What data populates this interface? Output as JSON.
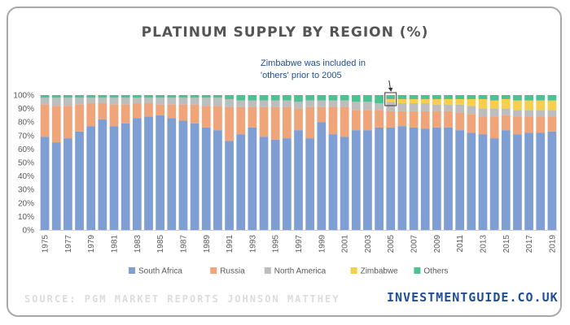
{
  "chart_data": {
    "type": "bar",
    "stacked": true,
    "title": "PLATINUM SUPPLY BY REGION (%)",
    "categories": [
      "1975",
      "1976",
      "1977",
      "1978",
      "1979",
      "1980",
      "1981",
      "1982",
      "1983",
      "1984",
      "1985",
      "1986",
      "1987",
      "1988",
      "1989",
      "1990",
      "1991",
      "1992",
      "1993",
      "1994",
      "1995",
      "1996",
      "1997",
      "1998",
      "1999",
      "2000",
      "2001",
      "2002",
      "2003",
      "2004",
      "2005",
      "2006",
      "2007",
      "2008",
      "2009",
      "2010",
      "2011",
      "2012",
      "2013",
      "2014",
      "2015",
      "2016",
      "2017",
      "2018",
      "2019"
    ],
    "x_tick_labels": [
      "1975",
      "1977",
      "1979",
      "1981",
      "1983",
      "1985",
      "1987",
      "1989",
      "1991",
      "1993",
      "1995",
      "1997",
      "1999",
      "2001",
      "2003",
      "2005",
      "2007",
      "2009",
      "2011",
      "2013",
      "2015",
      "2017",
      "2019"
    ],
    "y_tick_labels": [
      "0%",
      "10%",
      "20%",
      "30%",
      "40%",
      "50%",
      "60%",
      "70%",
      "80%",
      "90%",
      "100%"
    ],
    "ylim": [
      0,
      100
    ],
    "grid": false,
    "legend_position": "bottom",
    "series": [
      {
        "name": "South Africa",
        "color": "#7f9fd4",
        "values": [
          69,
          65,
          68,
          73,
          77,
          82,
          77,
          79,
          83,
          84,
          85,
          83,
          81,
          79,
          76,
          74,
          66,
          71,
          76,
          69,
          67,
          68,
          74,
          68,
          80,
          71,
          69,
          74,
          74,
          76,
          76,
          77,
          76,
          75,
          76,
          76,
          74,
          72,
          71,
          68,
          74,
          71,
          72,
          72,
          73
        ]
      },
      {
        "name": "Russia",
        "color": "#f0a47a",
        "values": [
          24,
          27,
          24,
          20,
          17,
          12,
          16,
          14,
          11,
          10,
          8,
          10,
          12,
          14,
          16,
          18,
          25,
          20,
          15,
          22,
          24,
          23,
          16,
          23,
          11,
          20,
          22,
          15,
          15,
          13,
          12,
          11,
          12,
          13,
          12,
          12,
          13,
          14,
          13,
          16,
          11,
          13,
          12,
          12,
          11
        ]
      },
      {
        "name": "North America",
        "color": "#bdbdbd",
        "values": [
          5,
          6,
          6,
          5,
          4,
          4,
          5,
          5,
          4,
          4,
          5,
          5,
          5,
          5,
          6,
          6,
          6,
          5,
          5,
          5,
          5,
          5,
          5,
          5,
          5,
          5,
          5,
          6,
          6,
          5,
          7,
          6,
          6,
          6,
          5,
          5,
          6,
          6,
          6,
          6,
          5,
          5,
          5,
          5,
          5
        ]
      },
      {
        "name": "Zimbabwe",
        "color": "#f7cf4d",
        "values": [
          0,
          0,
          0,
          0,
          0,
          0,
          0,
          0,
          0,
          0,
          0,
          0,
          0,
          0,
          0,
          0,
          0,
          0,
          0,
          0,
          0,
          0,
          0,
          0,
          0,
          0,
          0,
          0,
          0,
          0,
          2,
          3,
          3,
          3,
          4,
          4,
          4,
          5,
          7,
          6,
          7,
          7,
          7,
          7,
          7
        ]
      },
      {
        "name": "Others",
        "color": "#4fc190",
        "values": [
          2,
          2,
          2,
          2,
          2,
          2,
          2,
          2,
          2,
          2,
          2,
          2,
          2,
          2,
          2,
          2,
          3,
          4,
          4,
          4,
          4,
          4,
          5,
          4,
          4,
          4,
          4,
          5,
          5,
          6,
          3,
          3,
          3,
          3,
          3,
          3,
          3,
          3,
          3,
          4,
          3,
          4,
          4,
          4,
          4
        ]
      }
    ],
    "annotation": {
      "text_line1": "Zimbabwe was included in",
      "text_line2": "'others' prior to 2005",
      "target_category": "2005"
    }
  },
  "footer": {
    "source": "SOURCE: PGM MARKET REPORTS JOHNSON MATTHEY",
    "brand": "INVESTMENTGUIDE.CO.UK"
  }
}
